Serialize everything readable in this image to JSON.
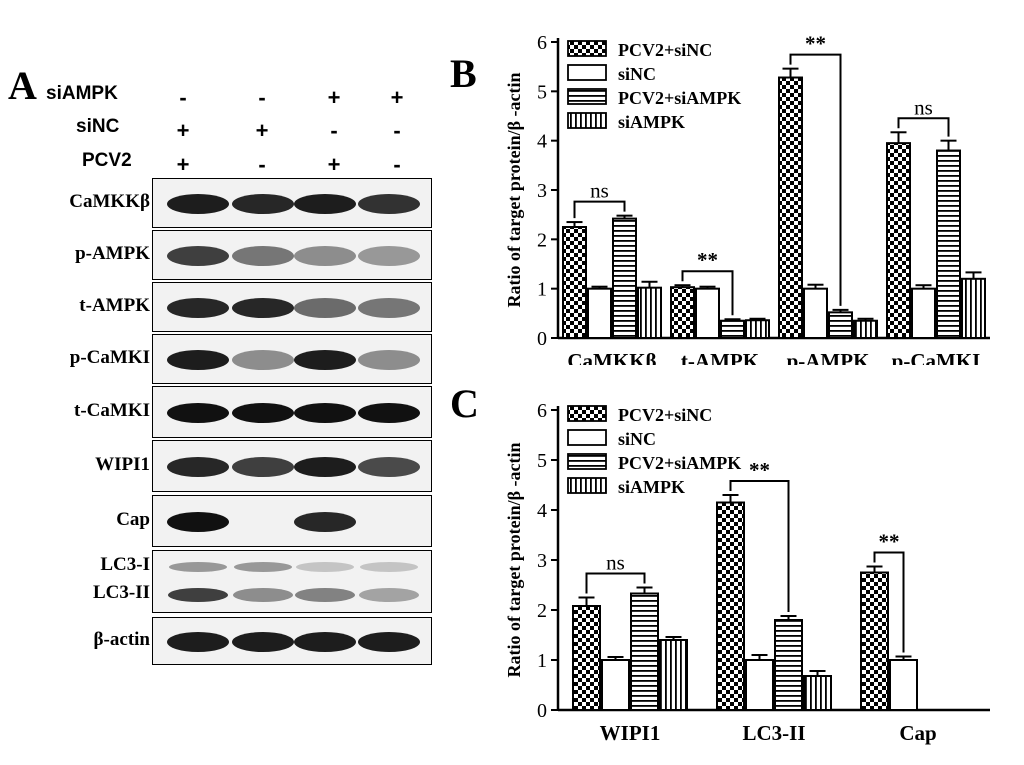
{
  "panel_a": {
    "letter": "A",
    "conditions": [
      {
        "label": "siAMPK",
        "signs": [
          "-",
          "-",
          "+",
          "+"
        ]
      },
      {
        "label": "siNC",
        "signs": [
          "+",
          "+",
          "-",
          "-"
        ]
      },
      {
        "label": "PCV2",
        "signs": [
          "+",
          "-",
          "+",
          "-"
        ]
      }
    ],
    "blots": [
      {
        "label": "CaMKKβ",
        "intensity": [
          0.95,
          0.9,
          0.95,
          0.85
        ]
      },
      {
        "label": "p-AMPK",
        "intensity": [
          0.8,
          0.55,
          0.45,
          0.4
        ]
      },
      {
        "label": "t-AMPK",
        "intensity": [
          0.9,
          0.9,
          0.6,
          0.55
        ]
      },
      {
        "label": "p-CaMKI",
        "intensity": [
          0.95,
          0.45,
          0.95,
          0.45
        ]
      },
      {
        "label": "t-CaMKI",
        "intensity": [
          1.0,
          1.0,
          1.0,
          1.0
        ]
      },
      {
        "label": "WIPI1",
        "intensity": [
          0.9,
          0.8,
          0.95,
          0.75
        ]
      },
      {
        "label": "Cap",
        "intensity": [
          1.0,
          0.0,
          0.9,
          0.0
        ]
      },
      {
        "label_top": "LC3-I",
        "label_bottom": "LC3-II",
        "intensity_top": [
          0.4,
          0.4,
          0.2,
          0.2
        ],
        "intensity_bottom": [
          0.8,
          0.45,
          0.5,
          0.35
        ]
      },
      {
        "label": "β-actin",
        "intensity": [
          0.95,
          0.95,
          0.95,
          0.95
        ]
      }
    ]
  },
  "chart_data": [
    {
      "panel": "B",
      "type": "bar",
      "ylabel": "Ratio of target protein/β -actin",
      "xlabel": "",
      "ylim": [
        0,
        6
      ],
      "yticks": [
        0,
        1,
        2,
        3,
        4,
        5,
        6
      ],
      "categories": [
        "CaMKKβ",
        "t-AMPK",
        "p-AMPK",
        "p-CaMKI"
      ],
      "series": [
        {
          "name": "PCV2+siNC",
          "pattern": "checker",
          "values": [
            2.25,
            1.03,
            5.28,
            3.95
          ],
          "errors": [
            0.1,
            0.04,
            0.18,
            0.22
          ]
        },
        {
          "name": "siNC",
          "pattern": "blank",
          "values": [
            1.0,
            1.0,
            1.0,
            1.0
          ],
          "errors": [
            0.04,
            0.04,
            0.08,
            0.07
          ]
        },
        {
          "name": "PCV2+siAMPK",
          "pattern": "hlines",
          "values": [
            2.42,
            0.35,
            0.52,
            3.8
          ],
          "errors": [
            0.06,
            0.03,
            0.05,
            0.2
          ]
        },
        {
          "name": "siAMPK",
          "pattern": "vlines",
          "values": [
            1.02,
            0.36,
            0.35,
            1.2
          ],
          "errors": [
            0.12,
            0.03,
            0.04,
            0.13
          ]
        }
      ],
      "annotations": [
        {
          "text": "ns",
          "category_index": 0,
          "from_series": 0,
          "to_series": 2
        },
        {
          "text": "**",
          "category_index": 1,
          "from_series": 0,
          "to_series": 2
        },
        {
          "text": "**",
          "category_index": 2,
          "from_series": 0,
          "to_series": 2
        },
        {
          "text": "ns",
          "category_index": 3,
          "from_series": 0,
          "to_series": 2
        }
      ],
      "legend_position": "top-left"
    },
    {
      "panel": "C",
      "type": "bar",
      "ylabel": "Ratio of target protein/β -actin",
      "xlabel": "",
      "ylim": [
        0,
        6
      ],
      "yticks": [
        0,
        1,
        2,
        3,
        4,
        5,
        6
      ],
      "categories": [
        "WIPI1",
        "LC3-II",
        "Cap"
      ],
      "series": [
        {
          "name": "PCV2+siNC",
          "pattern": "checker",
          "values": [
            2.08,
            4.15,
            2.75
          ],
          "errors": [
            0.17,
            0.15,
            0.12
          ]
        },
        {
          "name": "siNC",
          "pattern": "blank",
          "values": [
            1.0,
            1.0,
            1.0
          ],
          "errors": [
            0.06,
            0.1,
            0.07
          ]
        },
        {
          "name": "PCV2+siAMPK",
          "pattern": "hlines",
          "values": [
            2.33,
            1.8,
            null
          ],
          "errors": [
            0.12,
            0.08,
            null
          ]
        },
        {
          "name": "siAMPK",
          "pattern": "vlines",
          "values": [
            1.4,
            0.68,
            null
          ],
          "errors": [
            0.06,
            0.1,
            null
          ]
        }
      ],
      "annotations": [
        {
          "text": "ns",
          "category_index": 0,
          "from_series": 0,
          "to_series": 2
        },
        {
          "text": "**",
          "category_index": 1,
          "from_series": 0,
          "to_series": 2
        },
        {
          "text": "**",
          "category_index": 2,
          "from_series": 0,
          "to_series": 1
        }
      ],
      "legend_position": "top-left"
    }
  ]
}
